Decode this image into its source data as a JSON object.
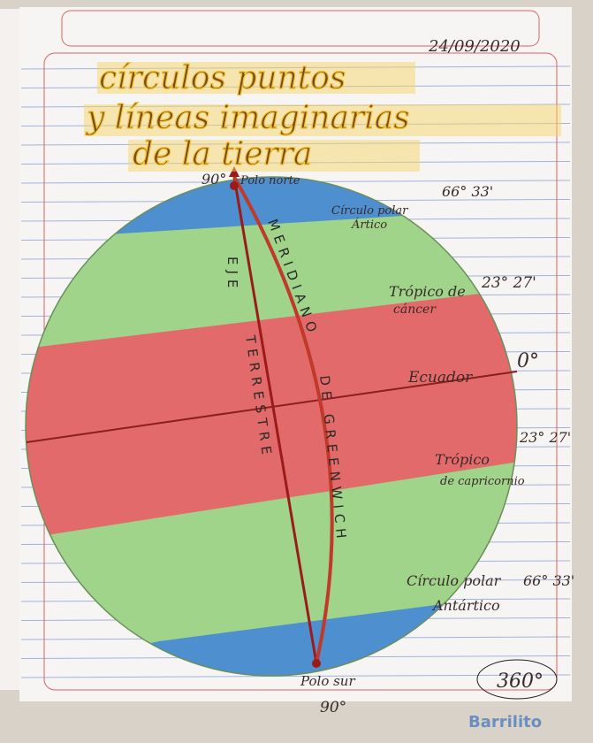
{
  "header": {
    "date": "24/09/2020",
    "title": [
      "círculos puntos",
      "y líneas imaginarias",
      "de la tierra"
    ]
  },
  "labels": {
    "north_angle": "90°",
    "north_pole": "Polo norte",
    "arctic": [
      "Círculo polar",
      "Ártico"
    ],
    "arctic_angle": "66° 33'",
    "cancer": [
      "Trópico de",
      "cáncer"
    ],
    "cancer_angle": "23° 27'",
    "equator": "Ecuador",
    "equator_angle": "0°",
    "capricorn": [
      "Trópico",
      "de capricornio"
    ],
    "capricorn_angle": "23° 27'",
    "antarctic": [
      "Círculo polar",
      "Antártico"
    ],
    "antarctic_angle": "66° 33'",
    "south_pole": "Polo sur",
    "south_angle": "90°",
    "axis": [
      "EJE",
      "TERRESTRE"
    ],
    "meridian": [
      "MERIDIANO",
      "DE GREENWICH"
    ],
    "full_circle": "360°"
  },
  "brand": "Barrilito"
}
